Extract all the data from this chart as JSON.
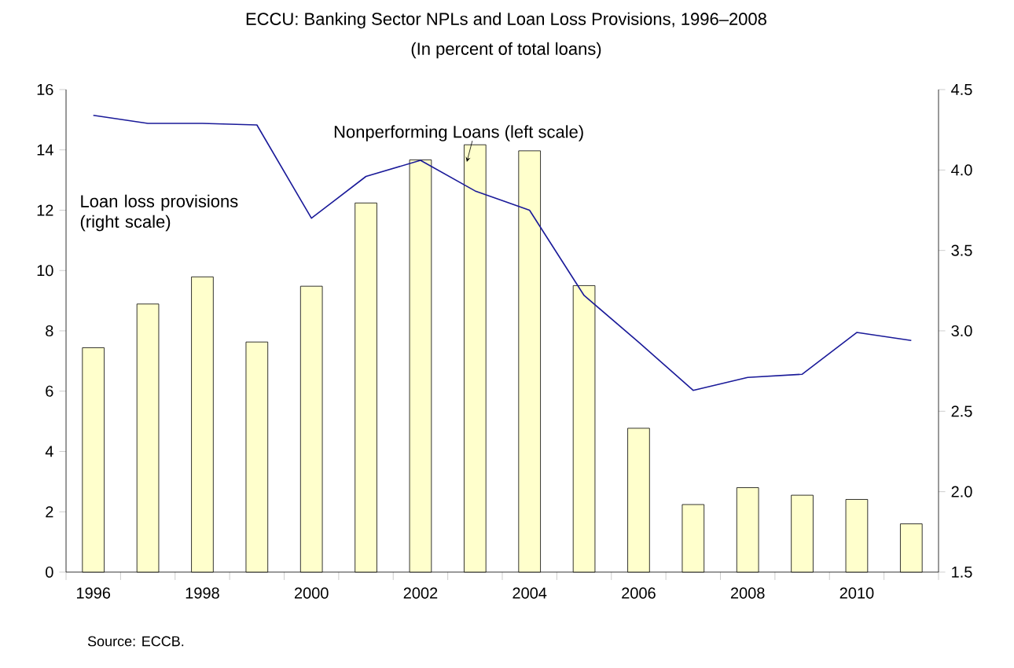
{
  "chart_data": {
    "type": "bar",
    "title": "ECCU: Banking Sector NPLs and Loan Loss Provisions, 1996–2008",
    "subtitle": "(In percent of total loans)",
    "categories": [
      "1996",
      null,
      "1998",
      null,
      "2000",
      null,
      "2002",
      null,
      "2004",
      null,
      "2006",
      null,
      "2008",
      null,
      "2010",
      null
    ],
    "series": [
      {
        "color": "#ffffcc",
        "values": [
          7.44,
          8.89,
          9.79,
          7.63,
          9.48,
          12.24,
          13.67,
          14.17,
          13.97,
          9.5,
          4.77,
          2.24,
          2.8,
          2.55,
          2.41,
          1.6
        ]
      },
      {
        "type": "line",
        "axis": "y2",
        "color": "#1a1a99",
        "values": [
          4.34,
          4.29,
          4.29,
          4.28,
          3.7,
          3.96,
          4.06,
          3.87,
          3.75,
          3.22,
          2.93,
          2.63,
          2.71,
          2.73,
          2.99,
          2.94
        ]
      }
    ],
    "ylim": [
      0,
      16
    ],
    "yticks": [
      0,
      2,
      4,
      6,
      8,
      10,
      12,
      14,
      16
    ],
    "y2lim": [
      1.5,
      4.5
    ],
    "y2ticks": [
      {
        "value": 1.5,
        "label": "1.5"
      },
      {
        "value": 2,
        "label": "2.0"
      },
      {
        "value": 2.5,
        "label": "2.5"
      },
      {
        "value": 3,
        "label": "3.0"
      },
      {
        "value": 3.5,
        "label": "3.5"
      },
      {
        "value": 4,
        "label": "4.0"
      },
      {
        "value": 4.5,
        "label": "4.5"
      }
    ],
    "annotations": [
      "Nonperforming Loans (left scale)",
      "Loan loss provisions (right scale)",
      "Source: ECCB."
    ],
    "grid": false
  }
}
